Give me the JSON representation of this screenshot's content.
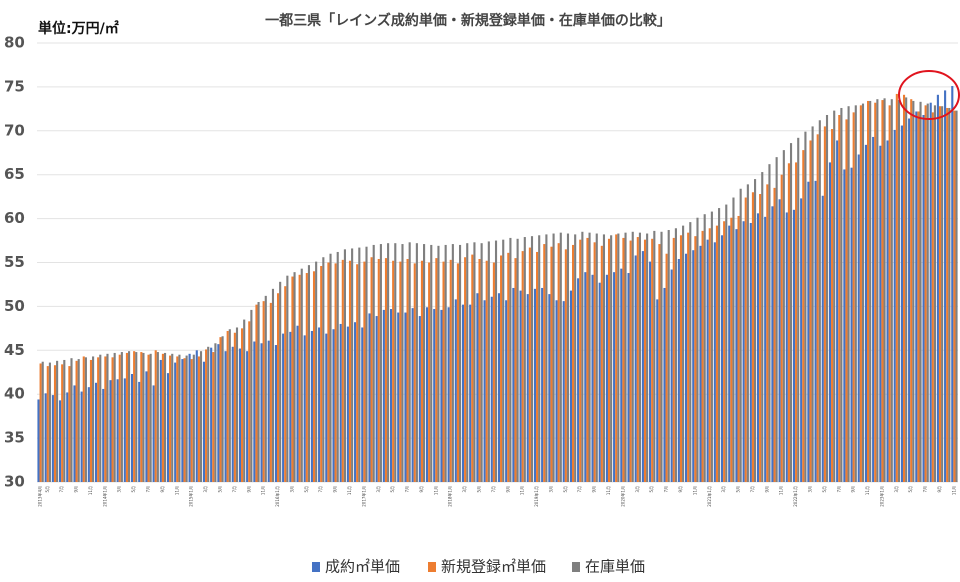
{
  "chart_data": {
    "type": "bar",
    "title": "一都三県「レインズ成約単価・新規登録単価・在庫単価の比較」",
    "unit_label": "単位:万円/㎡",
    "categories": [
      "2013年4月",
      "5月",
      null,
      "7月",
      null,
      "9月",
      null,
      "11月",
      null,
      "2014年1月",
      null,
      "3月",
      null,
      "5月",
      null,
      "7月",
      null,
      "9月",
      null,
      "11月",
      null,
      "2015年1月",
      null,
      "3月",
      null,
      "5月",
      null,
      "7月",
      null,
      "9月",
      null,
      "11月",
      null,
      "2016年1月",
      null,
      "3月",
      null,
      "5月",
      null,
      "7月",
      null,
      "9月",
      null,
      "11月",
      null,
      "2017年1月",
      null,
      "3月",
      null,
      "5月",
      null,
      "7月",
      null,
      "9月",
      null,
      "11月",
      null,
      "2018年1月",
      null,
      "3月",
      null,
      "5月",
      null,
      "7月",
      null,
      "9月",
      null,
      "11月",
      null,
      "2019年1月",
      null,
      "3月",
      null,
      "5月",
      null,
      "7月",
      null,
      "9月",
      null,
      "11月",
      null,
      "2020年1月",
      null,
      "3月",
      null,
      "5月",
      null,
      "7月",
      null,
      "9月",
      null,
      "11月",
      null,
      "2021年1月",
      null,
      "3月",
      null,
      "5月",
      null,
      "7月",
      null,
      "9月",
      null,
      "11月",
      null,
      "2022年1月",
      null,
      "3月",
      null,
      "5月",
      null,
      "7月",
      null,
      "9月",
      null,
      "11月",
      null,
      "2023年1月",
      null,
      "3月",
      null,
      "5月",
      null,
      "7月",
      null,
      "9月",
      null,
      "11月"
    ],
    "series": [
      {
        "name": "成約㎡単価",
        "color": "#4472c4",
        "values": [
          39.4,
          40.1,
          39.9,
          39.3,
          40.2,
          41.0,
          40.3,
          40.8,
          41.3,
          40.6,
          41.6,
          41.7,
          41.8,
          42.3,
          41.4,
          42.6,
          41.0,
          43.9,
          42.4,
          43.6,
          44.0,
          44.6,
          45.0,
          43.7,
          45.3,
          45.7,
          44.9,
          45.4,
          45.2,
          44.9,
          46.0,
          45.8,
          46.1,
          45.6,
          46.9,
          47.1,
          47.8,
          46.7,
          47.2,
          47.6,
          46.9,
          47.4,
          48.0,
          47.7,
          48.2,
          47.6,
          49.2,
          48.9,
          49.6,
          49.7,
          49.3,
          49.3,
          49.8,
          48.9,
          49.9,
          49.7,
          49.6,
          49.9,
          50.8,
          50.2,
          50.2,
          51.5,
          50.7,
          51.1,
          51.5,
          50.7,
          52.1,
          51.8,
          51.4,
          52.0,
          52.1,
          51.4,
          50.7,
          50.6,
          51.8,
          53.2,
          53.9,
          53.6,
          52.7,
          53.6,
          53.9,
          54.3,
          53.8,
          55.8,
          56.3,
          55.1,
          50.8,
          52.1,
          54.2,
          55.4,
          56.0,
          56.4,
          56.9,
          57.6,
          57.3,
          58.1,
          59.2,
          58.8,
          59.7,
          59.5,
          60.6,
          60.2,
          61.4,
          62.2,
          60.7,
          61.0,
          62.3,
          64.2,
          64.3,
          62.6,
          66.4,
          68.9,
          65.6,
          65.8,
          67.3,
          68.4,
          69.3,
          68.3,
          68.9,
          70.1,
          70.6,
          71.4,
          72.2,
          71.8,
          73.2,
          74.1,
          74.6,
          75.1
        ]
      },
      {
        "name": "新規登録㎡単価",
        "color": "#ed7d31",
        "values": [
          43.5,
          43.2,
          43.3,
          43.4,
          43.2,
          43.8,
          44.3,
          43.9,
          44.2,
          44.3,
          44.2,
          44.5,
          44.7,
          44.9,
          44.8,
          44.5,
          45.0,
          44.6,
          44.4,
          44.3,
          44.1,
          44.0,
          44.3,
          45.1,
          44.8,
          46.5,
          47.2,
          47.0,
          47.5,
          48.3,
          50.2,
          50.6,
          50.4,
          51.5,
          52.3,
          53.4,
          53.6,
          53.8,
          54.0,
          54.6,
          55.0,
          54.9,
          55.3,
          55.2,
          54.8,
          55.1,
          55.6,
          55.4,
          55.5,
          55.2,
          55.1,
          55.4,
          54.9,
          55.2,
          55.0,
          55.5,
          55.1,
          55.3,
          54.9,
          55.6,
          55.9,
          55.4,
          55.2,
          55.0,
          55.8,
          56.1,
          55.5,
          56.3,
          56.7,
          56.2,
          57.1,
          56.8,
          57.2,
          56.5,
          57.0,
          57.6,
          57.8,
          57.3,
          56.9,
          57.7,
          58.2,
          57.8,
          57.5,
          57.9,
          57.6,
          57.7,
          57.1,
          56.0,
          57.8,
          58.1,
          58.4,
          58.0,
          58.6,
          58.9,
          59.2,
          59.7,
          60.1,
          60.3,
          62.4,
          63.0,
          62.8,
          63.9,
          63.5,
          65.0,
          66.3,
          66.4,
          67.8,
          68.9,
          69.6,
          70.5,
          70.2,
          71.8,
          71.3,
          72.1,
          72.9,
          73.4,
          73.2,
          73.5,
          72.9,
          74.2,
          74.1,
          73.6,
          72.2,
          72.9,
          72.1,
          72.8,
          72.6,
          72.3
        ]
      },
      {
        "name": "在庫単価",
        "color": "#7f7f7f",
        "values": [
          43.7,
          43.6,
          43.8,
          43.9,
          44.1,
          44.0,
          44.2,
          44.3,
          44.5,
          44.6,
          44.7,
          44.8,
          44.9,
          44.8,
          44.7,
          44.6,
          44.8,
          44.7,
          44.6,
          44.5,
          44.4,
          44.5,
          44.9,
          45.4,
          45.8,
          46.6,
          47.4,
          47.6,
          48.5,
          49.6,
          50.5,
          51.2,
          52.0,
          52.8,
          53.5,
          53.9,
          54.3,
          54.7,
          55.1,
          55.6,
          56.0,
          56.2,
          56.5,
          56.6,
          56.7,
          56.8,
          57.0,
          57.1,
          57.2,
          57.2,
          57.1,
          57.3,
          57.2,
          57.1,
          57.0,
          56.9,
          57.0,
          57.1,
          57.0,
          57.2,
          57.3,
          57.2,
          57.4,
          57.5,
          57.6,
          57.8,
          57.7,
          57.9,
          58.0,
          58.1,
          58.2,
          58.3,
          58.4,
          58.3,
          58.2,
          58.5,
          58.4,
          58.3,
          58.2,
          58.1,
          58.3,
          58.4,
          58.5,
          58.4,
          58.3,
          58.6,
          58.5,
          58.7,
          58.9,
          59.2,
          59.6,
          60.1,
          60.5,
          60.8,
          61.2,
          61.6,
          62.4,
          63.4,
          63.9,
          64.5,
          65.3,
          66.2,
          67.0,
          67.8,
          68.6,
          69.2,
          69.9,
          70.5,
          71.2,
          71.8,
          72.3,
          72.6,
          72.8,
          72.9,
          73.1,
          73.4,
          73.6,
          73.7,
          73.6,
          73.5,
          73.8,
          73.4,
          73.3,
          73.1,
          72.9,
          72.8,
          72.6,
          72.3
        ]
      }
    ],
    "ylim": [
      30,
      80
    ],
    "yticks": [
      30,
      35,
      40,
      45,
      50,
      55,
      60,
      65,
      70,
      75,
      80
    ],
    "grid": true
  }
}
